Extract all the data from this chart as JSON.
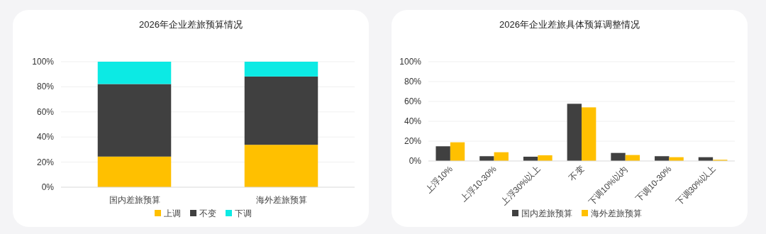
{
  "chart_data": [
    {
      "type": "bar",
      "title": "2026年企业差旅预算情况",
      "categories": [
        "国内差旅预算",
        "海外差旅预算"
      ],
      "stacked": true,
      "ylim": [
        0,
        100
      ],
      "yticks": [
        {
          "value": 0,
          "label": "0%"
        },
        {
          "value": 20,
          "label": "20%"
        },
        {
          "value": 40,
          "label": "40%"
        },
        {
          "value": 60,
          "label": "60%"
        },
        {
          "value": 80,
          "label": "80%"
        },
        {
          "value": 100,
          "label": "100%"
        }
      ],
      "grid": "y",
      "legend": "bottom",
      "series": [
        {
          "name": "上调",
          "color": "#ffc000",
          "values": [
            24.4,
            33.8
          ]
        },
        {
          "name": "不变",
          "color": "#404040",
          "values": [
            57.8,
            54.4
          ]
        },
        {
          "name": "下调",
          "color": "#0ceae4",
          "values": [
            17.8,
            11.8
          ]
        }
      ]
    },
    {
      "type": "bar",
      "title": "2026年企业差旅具体预算调整情况",
      "categories": [
        "上浮10%",
        "上浮10-30%",
        "上浮30%以上",
        "不变",
        "下调10%以内",
        "下调10-30%",
        "下调30%以上"
      ],
      "ylim": [
        0,
        100
      ],
      "yticks": [
        {
          "value": 0,
          "label": "0%"
        },
        {
          "value": 20,
          "label": "20%"
        },
        {
          "value": 40,
          "label": "40%"
        },
        {
          "value": 60,
          "label": "60%"
        },
        {
          "value": 80,
          "label": "80%"
        },
        {
          "value": 100,
          "label": "100%"
        }
      ],
      "grid": "y",
      "legend": "bottom",
      "series": [
        {
          "name": "国内差旅预算",
          "color": "#404040",
          "values": [
            14.8,
            4.8,
            4.3,
            57.6,
            8.1,
            4.8,
            3.8
          ]
        },
        {
          "name": "海外差旅预算",
          "color": "#ffc000",
          "values": [
            18.8,
            8.8,
            5.7,
            54.0,
            6.0,
            3.8,
            1.2
          ]
        }
      ]
    }
  ]
}
